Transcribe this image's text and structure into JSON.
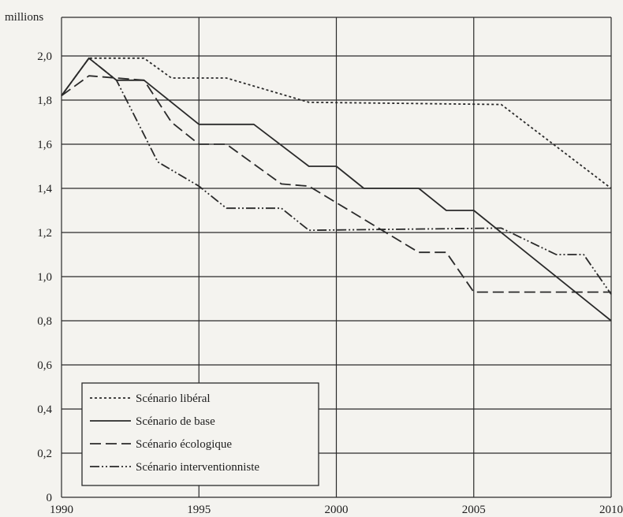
{
  "chart_data": {
    "type": "line",
    "ylabel": "millions",
    "xlim": [
      1990,
      2010
    ],
    "ylim": [
      0,
      2.1
    ],
    "grid": true,
    "legend_placement": "bottom-left",
    "x_ticks": [
      {
        "value": 1990,
        "label": "1990"
      },
      {
        "value": 1995,
        "label": "1995"
      },
      {
        "value": 2000,
        "label": "2000"
      },
      {
        "value": 2005,
        "label": "2005"
      },
      {
        "value": 2010,
        "label": "2010"
      }
    ],
    "y_ticks": [
      {
        "value": 0,
        "label": "0"
      },
      {
        "value": 0.2,
        "label": "0,2"
      },
      {
        "value": 0.4,
        "label": "0,4"
      },
      {
        "value": 0.6,
        "label": "0,6"
      },
      {
        "value": 0.8,
        "label": "0,8"
      },
      {
        "value": 1.0,
        "label": "1,0"
      },
      {
        "value": 1.2,
        "label": "1,2"
      },
      {
        "value": 1.4,
        "label": "1,4"
      },
      {
        "value": 1.6,
        "label": "1,6"
      },
      {
        "value": 1.8,
        "label": "1,8"
      },
      {
        "value": 2.0,
        "label": "2,0"
      }
    ],
    "series": [
      {
        "name": "Scénario libéral",
        "dash": "3,3",
        "points": [
          [
            1990,
            1.82
          ],
          [
            1991,
            1.99
          ],
          [
            1993,
            1.99
          ],
          [
            1994,
            1.9
          ],
          [
            1996,
            1.9
          ],
          [
            1999,
            1.79
          ],
          [
            2006,
            1.78
          ],
          [
            2010,
            1.4
          ]
        ]
      },
      {
        "name": "Scénario de base",
        "dash": "",
        "points": [
          [
            1990,
            1.82
          ],
          [
            1991,
            1.99
          ],
          [
            1992,
            1.89
          ],
          [
            1993,
            1.89
          ],
          [
            1995,
            1.69
          ],
          [
            1997,
            1.69
          ],
          [
            1999,
            1.5
          ],
          [
            2000,
            1.5
          ],
          [
            2001,
            1.4
          ],
          [
            2003,
            1.4
          ],
          [
            2004,
            1.3
          ],
          [
            2005,
            1.3
          ],
          [
            2010,
            0.8
          ]
        ]
      },
      {
        "name": "Scénario écologique",
        "dash": "14,6",
        "points": [
          [
            1990,
            1.82
          ],
          [
            1991,
            1.91
          ],
          [
            1993,
            1.89
          ],
          [
            1994,
            1.7
          ],
          [
            1995,
            1.6
          ],
          [
            1996,
            1.6
          ],
          [
            1998,
            1.42
          ],
          [
            1999,
            1.41
          ],
          [
            2003,
            1.11
          ],
          [
            2004,
            1.11
          ],
          [
            2005,
            0.93
          ],
          [
            2010,
            0.93
          ]
        ]
      },
      {
        "name": "Scénario interventionniste",
        "dash": "12,3,2,3,2,3",
        "points": [
          [
            1990,
            1.82
          ],
          [
            1991,
            1.99
          ],
          [
            1992,
            1.89
          ],
          [
            1993.5,
            1.52
          ],
          [
            1995,
            1.41
          ],
          [
            1996,
            1.31
          ],
          [
            1998,
            1.31
          ],
          [
            1999,
            1.21
          ],
          [
            2006,
            1.22
          ],
          [
            2008,
            1.1
          ],
          [
            2009,
            1.1
          ],
          [
            2010,
            0.92
          ]
        ]
      }
    ]
  }
}
